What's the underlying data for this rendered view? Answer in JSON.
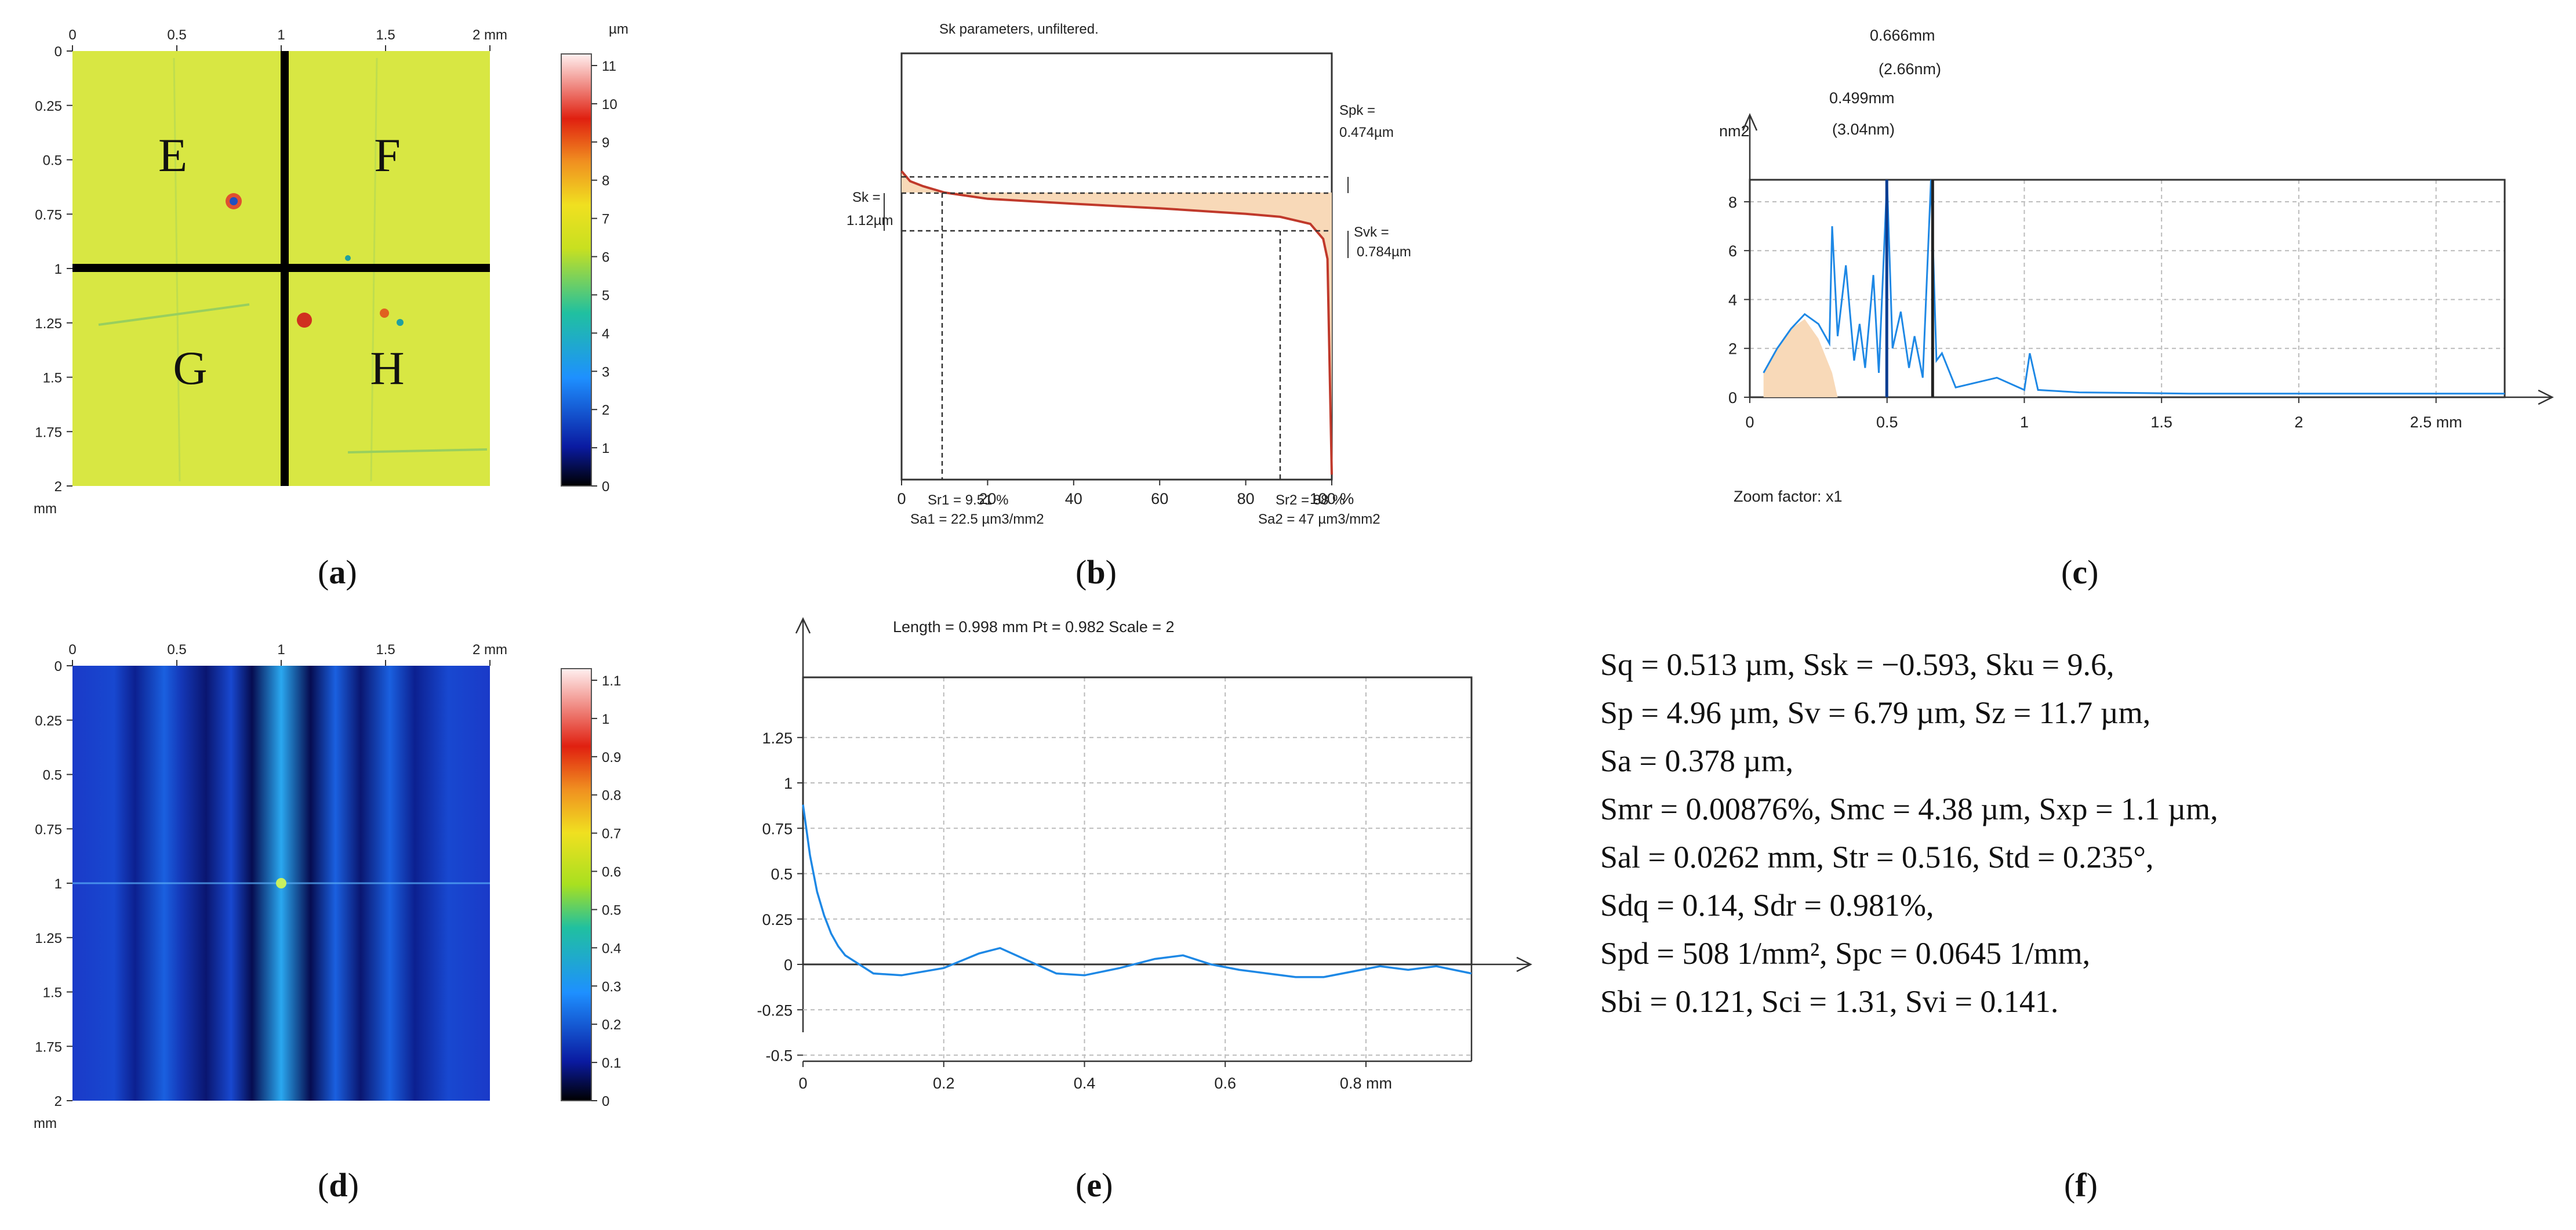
{
  "captions": [
    "a",
    "b",
    "c",
    "d",
    "e",
    "f"
  ],
  "panel_a": {
    "x_ticks": [
      "0",
      "0.5",
      "1",
      "1.5",
      "2 mm"
    ],
    "y_ticks": [
      "0",
      "0.25",
      "0.5",
      "0.75",
      "1",
      "1.25",
      "1.5",
      "1.75",
      "2"
    ],
    "axis_unit": "mm",
    "quadrants": [
      "E",
      "F",
      "G",
      "H"
    ],
    "colorbar_unit": "µm",
    "colorbar_ticks": [
      "11",
      "10",
      "9",
      "8",
      "7",
      "6",
      "5",
      "4",
      "3",
      "2",
      "1",
      "0"
    ]
  },
  "chart_data": [
    {
      "id": "b",
      "type": "line",
      "title": "Sk parameters, unfiltered.",
      "x_ticks": [
        "0",
        "20",
        "40",
        "60",
        "80",
        "100 %"
      ],
      "xlim": [
        0,
        100
      ],
      "series": [
        {
          "x": [
            0,
            2,
            5,
            10,
            20,
            40,
            60,
            80,
            88,
            95,
            98,
            99,
            100
          ],
          "y": [
            5.3,
            4.9,
            4.7,
            4.45,
            4.2,
            4.0,
            3.82,
            3.6,
            3.48,
            3.2,
            2.6,
            1.8,
            -6.8
          ]
        }
      ],
      "labels": {
        "spk": "Spk =",
        "spk_value": "0.474µm",
        "sk": "Sk =",
        "sk_value": "1.12µm",
        "svk": "Svk =",
        "svk_value": "0.784µm",
        "sr1": "Sr1 = 9.51 %",
        "sa1": "Sa1 = 22.5 µm3/mm2",
        "sr2": "Sr2 = 88 %",
        "sa2": "Sa2 = 47 µm3/mm2"
      }
    },
    {
      "id": "c",
      "type": "line",
      "ylabel": "nm2",
      "x_ticks": [
        "0",
        "0.5",
        "1",
        "1.5",
        "2",
        "2.5 mm"
      ],
      "y_ticks": [
        "0",
        "2",
        "4",
        "6",
        "8"
      ],
      "xlim": [
        0,
        2.75
      ],
      "ylim": [
        0,
        8.9
      ],
      "peaks": [
        {
          "pos": "0.666mm",
          "period": "(2.66nm)",
          "x": 0.666
        },
        {
          "pos": "0.499mm",
          "period": "(3.04nm)",
          "x": 0.499
        }
      ],
      "zoom_text": "Zoom factor: x1",
      "series": [
        {
          "x": [
            0.05,
            0.1,
            0.15,
            0.2,
            0.25,
            0.29,
            0.3,
            0.32,
            0.35,
            0.38,
            0.4,
            0.42,
            0.45,
            0.47,
            0.5,
            0.52,
            0.55,
            0.58,
            0.6,
            0.63,
            0.66,
            0.68,
            0.7,
            0.75,
            0.9,
            1.0,
            1.02,
            1.05,
            1.2,
            1.6,
            2.0,
            2.5,
            2.75
          ],
          "y": [
            1.0,
            2.0,
            2.8,
            3.4,
            3.0,
            2.2,
            7.0,
            2.5,
            5.4,
            1.5,
            3.0,
            1.2,
            5.0,
            1.0,
            8.9,
            2.0,
            3.5,
            1.2,
            2.5,
            0.8,
            8.9,
            1.5,
            1.8,
            0.4,
            0.8,
            0.3,
            1.8,
            0.3,
            0.2,
            0.15,
            0.15,
            0.15,
            0.15
          ]
        }
      ]
    },
    {
      "id": "e",
      "type": "line",
      "title": "Length = 0.998 mm  Pt = 0.982    Scale = 2",
      "x_ticks": [
        "0",
        "0.2",
        "0.4",
        "0.6",
        "0.8 mm"
      ],
      "y_ticks": [
        "1.25",
        "1",
        "0.75",
        "0.5",
        "0.25",
        "0",
        "-0.25",
        "-0.5"
      ],
      "xlim": [
        0,
        0.95
      ],
      "ylim": [
        -0.6,
        1.4
      ],
      "series": [
        {
          "x": [
            0,
            0.01,
            0.02,
            0.03,
            0.04,
            0.05,
            0.06,
            0.08,
            0.1,
            0.14,
            0.2,
            0.25,
            0.28,
            0.32,
            0.36,
            0.4,
            0.45,
            0.5,
            0.54,
            0.58,
            0.62,
            0.66,
            0.7,
            0.74,
            0.78,
            0.82,
            0.86,
            0.9,
            0.95
          ],
          "y": [
            0.88,
            0.6,
            0.4,
            0.27,
            0.17,
            0.1,
            0.05,
            0.0,
            -0.05,
            -0.06,
            -0.02,
            0.06,
            0.09,
            0.02,
            -0.05,
            -0.06,
            -0.02,
            0.03,
            0.05,
            0.0,
            -0.03,
            -0.05,
            -0.07,
            -0.07,
            -0.04,
            -0.01,
            -0.03,
            -0.01,
            -0.05
          ]
        }
      ]
    }
  ],
  "panel_d": {
    "x_ticks": [
      "0",
      "0.5",
      "1",
      "1.5",
      "2 mm"
    ],
    "y_ticks": [
      "0",
      "0.25",
      "0.5",
      "0.75",
      "1",
      "1.25",
      "1.5",
      "1.75",
      "2"
    ],
    "axis_unit": "mm",
    "colorbar_ticks": [
      "1.1",
      "1",
      "0.9",
      "0.8",
      "0.7",
      "0.6",
      "0.5",
      "0.4",
      "0.3",
      "0.2",
      "0.1",
      "0"
    ]
  },
  "params": [
    "Sq = 0.513 µm, Ssk = −0.593, Sku = 9.6,",
    "Sp = 4.96 µm, Sv = 6.79 µm, Sz = 11.7 µm,",
    "Sa = 0.378 µm,",
    "Smr = 0.00876%, Smc = 4.38 µm, Sxp = 1.1 µm,",
    "Sal = 0.0262 mm, Str = 0.516, Std = 0.235°,",
    "Sdq = 0.14, Sdr = 0.981%,",
    "Spd = 508 1/mm², Spc = 0.0645 1/mm,",
    "Sbi = 0.121, Sci = 1.31, Svi = 0.141."
  ],
  "colors": {
    "accent_line": "#1e88e5",
    "fill": "#f8d9b8",
    "curve": "#c0392b"
  }
}
